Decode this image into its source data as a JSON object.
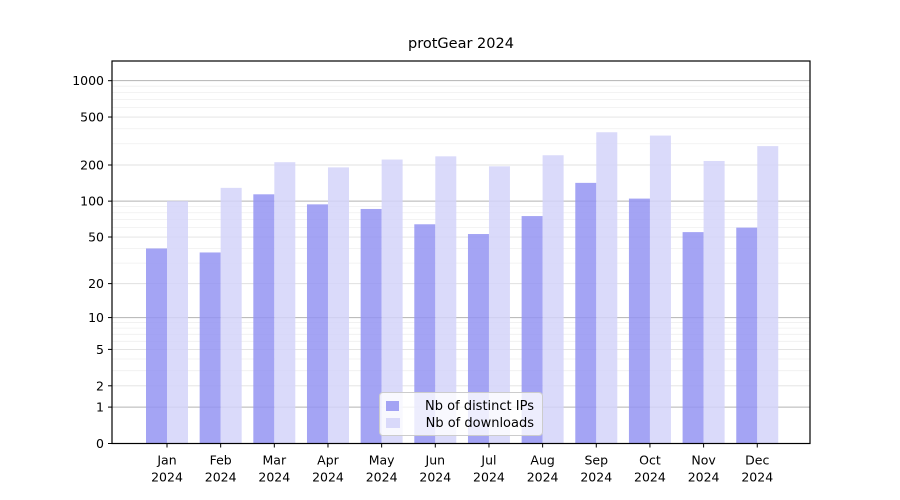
{
  "title": "protGear 2024",
  "chart_data": {
    "type": "bar",
    "title": "protGear 2024",
    "subtitle": "",
    "xlabel": "",
    "ylabel": "",
    "year_label": "2024",
    "categories": [
      "Jan",
      "Feb",
      "Mar",
      "Apr",
      "May",
      "Jun",
      "Jul",
      "Aug",
      "Sep",
      "Oct",
      "Nov",
      "Dec"
    ],
    "series": [
      {
        "name": "Nb of distinct IPs",
        "color": "#9494f2",
        "values": [
          40,
          37,
          114,
          94,
          86,
          64,
          53,
          75,
          142,
          105,
          55,
          60
        ]
      },
      {
        "name": "Nb of downloads",
        "color": "#d4d4f9",
        "values": [
          100,
          129,
          211,
          191,
          222,
          236,
          195,
          241,
          374,
          351,
          216,
          287
        ]
      }
    ],
    "y_scale": "log1p",
    "y_ticks": [
      0,
      1,
      2,
      5,
      10,
      20,
      50,
      100,
      200,
      500,
      1000
    ],
    "y_major_gridlines": [
      1,
      10,
      100,
      1000
    ],
    "y_mid_gridlines": [
      2,
      5,
      20,
      50,
      200,
      500
    ],
    "y_minor_gridlines": [
      3,
      4,
      6,
      7,
      8,
      9,
      30,
      40,
      60,
      70,
      80,
      90,
      300,
      400,
      600,
      700,
      800,
      900
    ],
    "y_top_value": 1455,
    "grid": true,
    "legend_position": "bottom-center",
    "colors": {
      "major_grid": "#b3b3b3",
      "mid_grid": "#e0e0e0",
      "minor_grid": "#efefef",
      "axis": "#000000",
      "text": "#000000"
    }
  }
}
